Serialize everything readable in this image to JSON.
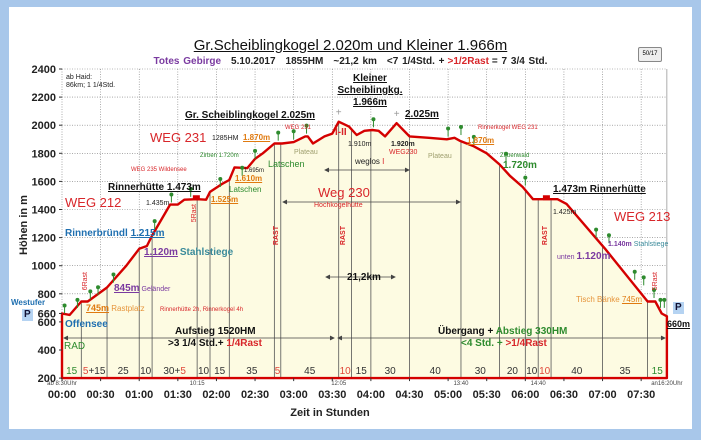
{
  "header": {
    "title": "Gr.Scheiblingkogel 2.020m und Kleiner 1.966m",
    "region": "Totes Gebirge",
    "date": "5.10.2017",
    "hm": "1855HM",
    "distance": "~21,2 km",
    "time": "<7 1/4Std. +",
    "rest": ">1/2Rast",
    "total": "= 7 3/4 Std.",
    "button": "50/17"
  },
  "colors": {
    "profile": "#d40000",
    "fill": "#fdfbe2",
    "grid": "#777",
    "segment": "#555",
    "red": "#d8262a",
    "green": "#2e8b2e"
  },
  "chart_data": {
    "type": "area",
    "title": "Gr.Scheiblingkogel 2.020m und Kleiner 1.966m",
    "xlabel": "Zeit in Stunden",
    "ylabel": "Höhen in m",
    "xlim_min": [
      0,
      470
    ],
    "ylim": [
      200,
      2400
    ],
    "yticks": [
      "200",
      "400",
      "600",
      "660",
      "800",
      "1000",
      "1200",
      "1400",
      "1600",
      "1800",
      "2000",
      "2200",
      "2400"
    ],
    "ytick_values": [
      200,
      400,
      600,
      660,
      800,
      1000,
      1200,
      1400,
      1600,
      1800,
      2000,
      2200,
      2400
    ],
    "xticks": [
      "00:00",
      "00:30",
      "01:00",
      "01:30",
      "02:00",
      "02:30",
      "03:00",
      "03:30",
      "04:00",
      "04:30",
      "05:00",
      "05:30",
      "06:00",
      "06:30",
      "07:00",
      "07:30"
    ],
    "grid": true,
    "profile": {
      "t_min": [
        0,
        6,
        15,
        20,
        35,
        50,
        60,
        66,
        70,
        84,
        90,
        95,
        105,
        112,
        115,
        124,
        130,
        134,
        144,
        150,
        156,
        165,
        171,
        180,
        189,
        191,
        195,
        204,
        210,
        215,
        223,
        229,
        235,
        241,
        246,
        251,
        260,
        270,
        285,
        299,
        305,
        309,
        320,
        330,
        340,
        348,
        358,
        366,
        385,
        392,
        422,
        455,
        461,
        466,
        470
      ],
      "elev_m": [
        660,
        650,
        745,
        745,
        845,
        1000,
        1120,
        1140,
        1215,
        1435,
        1435,
        1470,
        1473,
        1470,
        1525,
        1580,
        1610,
        1700,
        1695,
        1760,
        1800,
        1870,
        1870,
        1880,
        1920,
        1920,
        1870,
        1920,
        1940,
        2025,
        1990,
        1930,
        1960,
        1966,
        1960,
        1920,
        2014,
        1920,
        1910,
        1900,
        1910,
        1890,
        1850,
        1800,
        1720,
        1640,
        1560,
        1473,
        1473,
        1440,
        1120,
        745,
        745,
        660,
        640
      ]
    },
    "segments": [
      {
        "min": 15,
        "parts": [
          [
            "15",
            "green"
          ]
        ]
      },
      {
        "min": 20,
        "parts": [
          [
            "5",
            "red"
          ],
          [
            "+15",
            "black"
          ]
        ]
      },
      {
        "min": 25,
        "parts": [
          [
            "25",
            "black"
          ]
        ]
      },
      {
        "min": 10,
        "parts": [
          [
            "10",
            "black"
          ]
        ]
      },
      {
        "min": 35,
        "parts": [
          [
            "30",
            "black"
          ],
          [
            "+",
            "black"
          ],
          [
            "5",
            "red"
          ]
        ]
      },
      {
        "min": 10,
        "parts": [
          [
            "10",
            "black"
          ]
        ]
      },
      {
        "min": 15,
        "parts": [
          [
            "15",
            "black"
          ]
        ]
      },
      {
        "min": 35,
        "parts": [
          [
            "35",
            "black"
          ]
        ]
      },
      {
        "min": 5,
        "parts": [
          [
            "5",
            "red"
          ]
        ]
      },
      {
        "min": 45,
        "parts": [
          [
            "45",
            "black"
          ]
        ]
      },
      {
        "min": 10,
        "parts": [
          [
            "10",
            "red"
          ]
        ]
      },
      {
        "min": 15,
        "parts": [
          [
            "15",
            "black"
          ]
        ]
      },
      {
        "min": 30,
        "parts": [
          [
            "30",
            "black"
          ]
        ]
      },
      {
        "min": 40,
        "parts": [
          [
            "40",
            "black"
          ]
        ]
      },
      {
        "min": 30,
        "parts": [
          [
            "30",
            "black"
          ]
        ]
      },
      {
        "min": 20,
        "parts": [
          [
            "20",
            "black"
          ]
        ]
      },
      {
        "min": 10,
        "parts": [
          [
            "10",
            "black"
          ]
        ]
      },
      {
        "min": 10,
        "parts": [
          [
            "10",
            "red"
          ]
        ]
      },
      {
        "min": 40,
        "parts": [
          [
            "40",
            "black"
          ]
        ]
      },
      {
        "min": 35,
        "parts": [
          [
            "35",
            "black"
          ]
        ]
      },
      {
        "min": 15,
        "parts": [
          [
            "15",
            "green"
          ]
        ]
      }
    ],
    "clock_marks": [
      {
        "t": 0,
        "label": "ab 8:30Uhr"
      },
      {
        "t": 105,
        "label": "10:15"
      },
      {
        "t": 215,
        "label": "12:05"
      },
      {
        "t": 310,
        "label": "13:40"
      },
      {
        "t": 370,
        "label": "14:40"
      },
      {
        "t": 470,
        "label": "an16:20Uhr"
      }
    ],
    "annotations": {
      "haid1": "ab Haid:",
      "haid2": "86km; 1 1/4Std.",
      "weg231": "WEG 231",
      "weg212": "WEG 212",
      "weg213": "WEG 213",
      "weg230": "Weg 230",
      "hochkogel": "Hochkogelhütte",
      "rinner_l": "Rinnerhütte 1.473m",
      "rinner_r": "1.473m Rinnerhütte",
      "e1435": "1.435m",
      "e1425": "1.425m",
      "rast5a": "5Rast",
      "rast5b": "5Rast",
      "rast6": "6Rast",
      "e1525": "1.525m",
      "weg235": "WEG 235 Wildensee",
      "e1610": "1.610m",
      "latschen1": "Latschen",
      "latschen2": "Latschen",
      "zirben": "Zirben 1.720m",
      "e1695": "1.695m",
      "hm1285": "1285HM",
      "e1870a": "1.870m",
      "e1870b": "1.870m",
      "weg231s": "WEG 231",
      "plateau1": "Plateau",
      "plateau2": "Plateau",
      "gr_summit": "Gr. Scheiblingkogel 2.025m",
      "grade": "I-II",
      "kl1": "Kleiner",
      "kl2": "Scheiblingkg.",
      "kl3": "1.966m",
      "e2025": "2.025m",
      "e1910": "1.910m",
      "e1920": "1.920m",
      "weg230s": "WEG230",
      "weglos": "weglos ",
      "weglos_grade": "I",
      "rinnerkogel": "Rinnerkogel WEG 231",
      "zirbenwald": "Zirbenwald",
      "e1720": "1.720m",
      "stahl_r": "1.140m",
      "stahl_r2": "Stahlstiege",
      "unten": "unten",
      "e1120r": "1.120m",
      "tisch": "Tisch Bänke",
      "e745r": "745m",
      "p": "P",
      "e660": "660m",
      "westufer": "Westufer",
      "offensee": "Offensee",
      "rinnerbr": "Rinnerbründl",
      "e1215": "1.215m",
      "e1120l": "1.120m",
      "stahl_l": "Stahlstiege",
      "e845": "845m",
      "gelaender": "Geländer",
      "e745l": "745m",
      "rastplatz": "Rastplatz",
      "rinner_hint": "Rinnerhütte 2h, Rinnerkogel 4h",
      "rast": "RAST",
      "km": "21,2km",
      "auf1": "Aufstieg 1520HM",
      "auf2a": ">3 1/4 Std.+ ",
      "auf2b": "1/4Rast",
      "ueb1a": "Übergang + ",
      "ueb1b": "Abstieg 330HM",
      "ueb2a": "<4 Std. + ",
      "ueb2b": ">1/4Rast",
      "rad": "RAD"
    }
  }
}
